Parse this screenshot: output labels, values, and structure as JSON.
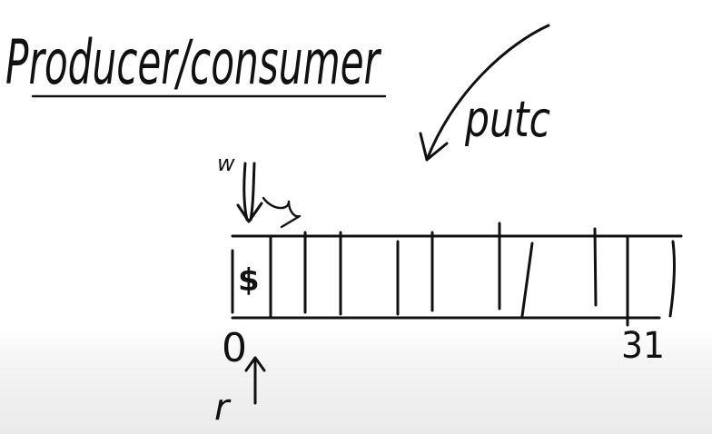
{
  "title": "Producer/consumer",
  "annotation_putc": "putc",
  "write_pointer_label": "w",
  "read_pointer_label": "r",
  "buffer": {
    "first_slot_content": "$",
    "start_index_label": "0",
    "end_index_label": "31"
  }
}
